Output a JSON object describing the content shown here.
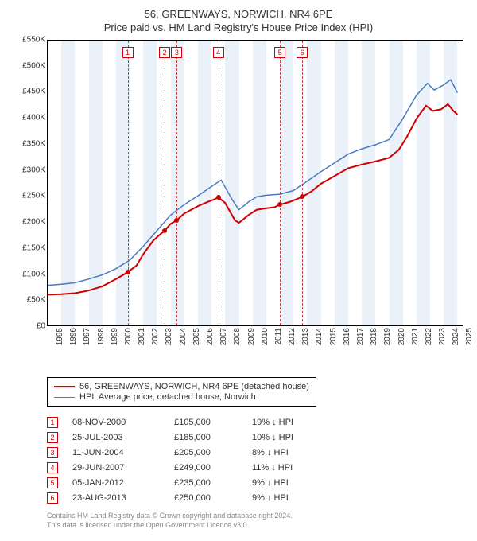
{
  "title": "56, GREENWAYS, NORWICH, NR4 6PE",
  "subtitle": "Price paid vs. HM Land Registry's House Price Index (HPI)",
  "chart": {
    "type": "line",
    "background_color": "#ffffff",
    "plot_border_color": "#000000",
    "band_color": "#eaf1f8",
    "xlim": [
      1995,
      2025.5
    ],
    "ylim": [
      0,
      550000
    ],
    "y_ticks": [
      0,
      50000,
      100000,
      150000,
      200000,
      250000,
      300000,
      350000,
      400000,
      450000,
      500000,
      550000
    ],
    "y_tick_labels": [
      "£0",
      "£50K",
      "£100K",
      "£150K",
      "£200K",
      "£250K",
      "£300K",
      "£350K",
      "£400K",
      "£450K",
      "£500K",
      "£550K"
    ],
    "x_ticks": [
      1995,
      1996,
      1997,
      1998,
      1999,
      2000,
      2001,
      2002,
      2003,
      2004,
      2005,
      2006,
      2007,
      2008,
      2009,
      2010,
      2011,
      2012,
      2013,
      2014,
      2015,
      2016,
      2017,
      2018,
      2019,
      2020,
      2021,
      2022,
      2023,
      2024,
      2025
    ],
    "y_label_fontsize": 10,
    "x_label_fontsize": 10,
    "x_label_rotation": -90,
    "series": [
      {
        "name": "property",
        "label": "56, GREENWAYS, NORWICH, NR4 6PE (detached house)",
        "color": "#d00000",
        "line_width": 2,
        "data": [
          [
            1995,
            62000
          ],
          [
            1996,
            63000
          ],
          [
            1997,
            65000
          ],
          [
            1998,
            70000
          ],
          [
            1999,
            78000
          ],
          [
            2000,
            92000
          ],
          [
            2000.85,
            105000
          ],
          [
            2001.5,
            118000
          ],
          [
            2002,
            140000
          ],
          [
            2002.7,
            165000
          ],
          [
            2003.1,
            175000
          ],
          [
            2003.56,
            185000
          ],
          [
            2004,
            198000
          ],
          [
            2004.45,
            205000
          ],
          [
            2005,
            218000
          ],
          [
            2005.5,
            225000
          ],
          [
            2006,
            232000
          ],
          [
            2006.7,
            240000
          ],
          [
            2007.2,
            245000
          ],
          [
            2007.49,
            249000
          ],
          [
            2008,
            238000
          ],
          [
            2008.7,
            205000
          ],
          [
            2009,
            200000
          ],
          [
            2009.7,
            215000
          ],
          [
            2010.3,
            225000
          ],
          [
            2011,
            228000
          ],
          [
            2011.6,
            230000
          ],
          [
            2012.01,
            235000
          ],
          [
            2012.7,
            240000
          ],
          [
            2013.2,
            245000
          ],
          [
            2013.64,
            250000
          ],
          [
            2014.3,
            260000
          ],
          [
            2015,
            275000
          ],
          [
            2016,
            290000
          ],
          [
            2017,
            305000
          ],
          [
            2018,
            312000
          ],
          [
            2019,
            318000
          ],
          [
            2020,
            325000
          ],
          [
            2020.7,
            340000
          ],
          [
            2021.3,
            365000
          ],
          [
            2022,
            400000
          ],
          [
            2022.7,
            425000
          ],
          [
            2023.2,
            415000
          ],
          [
            2023.8,
            418000
          ],
          [
            2024.3,
            428000
          ],
          [
            2024.7,
            415000
          ],
          [
            2025,
            408000
          ]
        ]
      },
      {
        "name": "hpi",
        "label": "HPI: Average price, detached house, Norwich",
        "color": "#4a7ac0",
        "line_width": 1.5,
        "data": [
          [
            1995,
            80000
          ],
          [
            1996,
            82000
          ],
          [
            1997,
            85000
          ],
          [
            1998,
            92000
          ],
          [
            1999,
            100000
          ],
          [
            2000,
            112000
          ],
          [
            2001,
            128000
          ],
          [
            2002,
            155000
          ],
          [
            2003,
            185000
          ],
          [
            2004,
            215000
          ],
          [
            2005,
            235000
          ],
          [
            2006,
            252000
          ],
          [
            2007,
            270000
          ],
          [
            2007.7,
            282000
          ],
          [
            2008.5,
            245000
          ],
          [
            2009,
            225000
          ],
          [
            2009.7,
            240000
          ],
          [
            2010.3,
            250000
          ],
          [
            2011,
            253000
          ],
          [
            2012,
            255000
          ],
          [
            2013,
            262000
          ],
          [
            2014,
            280000
          ],
          [
            2015,
            298000
          ],
          [
            2016,
            315000
          ],
          [
            2017,
            332000
          ],
          [
            2018,
            342000
          ],
          [
            2019,
            350000
          ],
          [
            2020,
            360000
          ],
          [
            2021,
            400000
          ],
          [
            2022,
            445000
          ],
          [
            2022.8,
            468000
          ],
          [
            2023.3,
            455000
          ],
          [
            2024,
            465000
          ],
          [
            2024.5,
            475000
          ],
          [
            2025,
            450000
          ]
        ]
      }
    ],
    "sale_markers": [
      {
        "n": "1",
        "x": 2000.85,
        "y": 105000
      },
      {
        "n": "2",
        "x": 2003.56,
        "y": 185000
      },
      {
        "n": "3",
        "x": 2004.45,
        "y": 205000
      },
      {
        "n": "4",
        "x": 2007.49,
        "y": 249000
      },
      {
        "n": "5",
        "x": 2012.01,
        "y": 235000
      },
      {
        "n": "6",
        "x": 2013.64,
        "y": 250000
      }
    ],
    "marker_box_color": "#d00000",
    "marker_dash_color": "#d04040",
    "dot_color": "#d00000"
  },
  "legend": {
    "border_color": "#000000",
    "fontsize": 11
  },
  "sales_table": {
    "rows": [
      {
        "n": "1",
        "date": "08-NOV-2000",
        "price": "£105,000",
        "diff": "19% ↓ HPI"
      },
      {
        "n": "2",
        "date": "25-JUL-2003",
        "price": "£185,000",
        "diff": "10% ↓ HPI"
      },
      {
        "n": "3",
        "date": "11-JUN-2004",
        "price": "£205,000",
        "diff": "8% ↓ HPI"
      },
      {
        "n": "4",
        "date": "29-JUN-2007",
        "price": "£249,000",
        "diff": "11% ↓ HPI"
      },
      {
        "n": "5",
        "date": "05-JAN-2012",
        "price": "£235,000",
        "diff": "9% ↓ HPI"
      },
      {
        "n": "6",
        "date": "23-AUG-2013",
        "price": "£250,000",
        "diff": "9% ↓ HPI"
      }
    ]
  },
  "footer": {
    "line1": "Contains HM Land Registry data © Crown copyright and database right 2024.",
    "line2": "This data is licensed under the Open Government Licence v3.0."
  }
}
